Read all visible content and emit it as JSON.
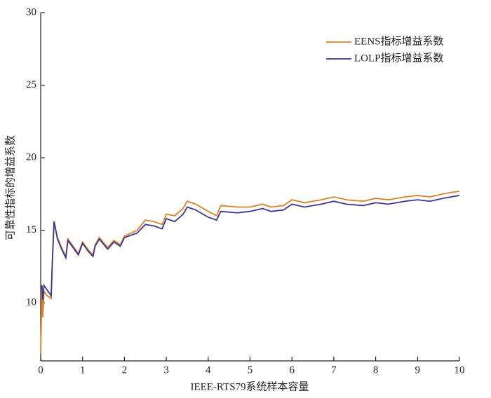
{
  "chart_data": {
    "type": "line",
    "x_label": "IEEE-RTS79系统样本容量",
    "y_label": "可靠性指标的增益系数",
    "xlim": [
      0,
      10
    ],
    "xticks": [
      0,
      1,
      2,
      3,
      4,
      5,
      6,
      7,
      8,
      9,
      10
    ],
    "ylim": [
      6,
      30
    ],
    "yticks": [
      10,
      15,
      20,
      25,
      30
    ],
    "legend": "upper right",
    "x": [
      0,
      0.03,
      0.05,
      0.08,
      0.15,
      0.25,
      0.28,
      0.32,
      0.4,
      0.5,
      0.6,
      0.65,
      0.8,
      0.9,
      1.0,
      1.15,
      1.25,
      1.3,
      1.4,
      1.6,
      1.75,
      1.9,
      2.0,
      2.3,
      2.5,
      2.7,
      2.9,
      3.0,
      3.2,
      3.4,
      3.5,
      3.7,
      4.0,
      4.2,
      4.3,
      4.7,
      5.0,
      5.3,
      5.5,
      5.8,
      6.0,
      6.3,
      6.7,
      7.0,
      7.3,
      7.7,
      8.0,
      8.3,
      8.7,
      9.0,
      9.3,
      9.6,
      9.8,
      10
    ],
    "series": [
      {
        "name": "EENS指标增益系数",
        "color": "#d9822b",
        "values": [
          6.5,
          11,
          9,
          10.8,
          10.5,
          10.3,
          12.8,
          15.6,
          14.5,
          13.8,
          13.2,
          14.4,
          13.8,
          13.4,
          14.2,
          13.6,
          13.3,
          14.0,
          14.5,
          13.8,
          14.3,
          14.0,
          14.6,
          15.0,
          15.7,
          15.6,
          15.4,
          16.1,
          16.0,
          16.5,
          17.0,
          16.8,
          16.3,
          16.0,
          16.7,
          16.6,
          16.6,
          16.8,
          16.6,
          16.7,
          17.1,
          16.9,
          17.1,
          17.3,
          17.1,
          17.0,
          17.2,
          17.1,
          17.3,
          17.4,
          17.3,
          17.5,
          17.6,
          17.7
        ]
      },
      {
        "name": "LOLP指标增益系数",
        "color": "#3d3590",
        "values": [
          11.0,
          11.2,
          10.2,
          11.2,
          10.9,
          10.5,
          13.0,
          15.6,
          14.4,
          13.7,
          13.1,
          14.3,
          13.7,
          13.3,
          14.1,
          13.5,
          13.2,
          13.9,
          14.4,
          13.7,
          14.2,
          13.9,
          14.5,
          14.8,
          15.4,
          15.3,
          15.1,
          15.8,
          15.6,
          16.1,
          16.6,
          16.4,
          15.9,
          15.7,
          16.3,
          16.2,
          16.3,
          16.5,
          16.3,
          16.4,
          16.8,
          16.6,
          16.8,
          17.0,
          16.8,
          16.7,
          16.9,
          16.8,
          17.0,
          17.1,
          17.0,
          17.2,
          17.3,
          17.4
        ]
      }
    ]
  }
}
